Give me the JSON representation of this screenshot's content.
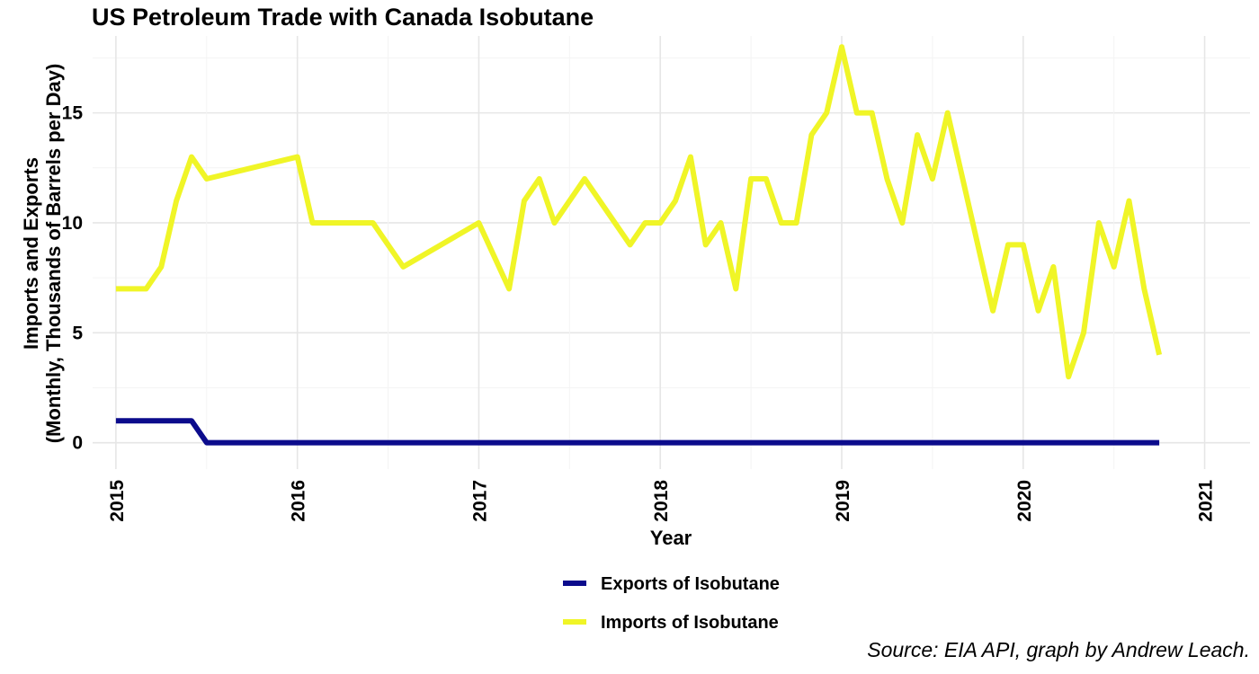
{
  "chart_data": {
    "type": "line",
    "title": "US Petroleum Trade with Canada Isobutane",
    "xlabel": "Year",
    "ylabel_lines": [
      "Imports and Exports",
      "(Monthly, Thousands of Barrels per Day)"
    ],
    "caption": "Source: EIA API, graph by Andrew Leach.",
    "x_ticks": [
      "2015",
      "2016",
      "2017",
      "2018",
      "2019",
      "2020",
      "2021"
    ],
    "y_ticks": [
      "0",
      "5",
      "10",
      "15"
    ],
    "xlim": [
      "2014-11-15",
      "2021-04-01"
    ],
    "ylim": [
      -1.2,
      18.5
    ],
    "grid": true,
    "legend_position": "bottom",
    "series": [
      {
        "name": "Exports of Isobutane",
        "color": "#0b0b8c",
        "points": [
          [
            "2015-01",
            1
          ],
          [
            "2015-02",
            1
          ],
          [
            "2015-03",
            1
          ],
          [
            "2015-04",
            1
          ],
          [
            "2015-05",
            1
          ],
          [
            "2015-06",
            1
          ],
          [
            "2015-07",
            0
          ],
          [
            "2016-01",
            0
          ],
          [
            "2017-01",
            0
          ],
          [
            "2018-01",
            0
          ],
          [
            "2019-01",
            0
          ],
          [
            "2020-01",
            0
          ],
          [
            "2020-10",
            0
          ]
        ]
      },
      {
        "name": "Imports of Isobutane",
        "color": "#f0f527",
        "points": [
          [
            "2015-01",
            7
          ],
          [
            "2015-02",
            7
          ],
          [
            "2015-03",
            7
          ],
          [
            "2015-04",
            8
          ],
          [
            "2015-05",
            11
          ],
          [
            "2015-06",
            13
          ],
          [
            "2015-07",
            12
          ],
          [
            "2016-01",
            13
          ],
          [
            "2016-02",
            10
          ],
          [
            "2016-06",
            10
          ],
          [
            "2016-08",
            8
          ],
          [
            "2017-01",
            10
          ],
          [
            "2017-03",
            7
          ],
          [
            "2017-04",
            11
          ],
          [
            "2017-05",
            12
          ],
          [
            "2017-06",
            10
          ],
          [
            "2017-08",
            12
          ],
          [
            "2017-11",
            9
          ],
          [
            "2017-12",
            10
          ],
          [
            "2018-01",
            10
          ],
          [
            "2018-02",
            11
          ],
          [
            "2018-03",
            13
          ],
          [
            "2018-04",
            9
          ],
          [
            "2018-05",
            10
          ],
          [
            "2018-06",
            7
          ],
          [
            "2018-07",
            12
          ],
          [
            "2018-08",
            12
          ],
          [
            "2018-09",
            10
          ],
          [
            "2018-10",
            10
          ],
          [
            "2018-11",
            14
          ],
          [
            "2018-12",
            15
          ],
          [
            "2019-01",
            18
          ],
          [
            "2019-02",
            15
          ],
          [
            "2019-03",
            15
          ],
          [
            "2019-04",
            12
          ],
          [
            "2019-05",
            10
          ],
          [
            "2019-06",
            14
          ],
          [
            "2019-07",
            12
          ],
          [
            "2019-08",
            15
          ],
          [
            "2019-11",
            6
          ],
          [
            "2019-12",
            9
          ],
          [
            "2020-01",
            9
          ],
          [
            "2020-02",
            6
          ],
          [
            "2020-03",
            8
          ],
          [
            "2020-04",
            3
          ],
          [
            "2020-05",
            5
          ],
          [
            "2020-06",
            10
          ],
          [
            "2020-07",
            8
          ],
          [
            "2020-08",
            11
          ],
          [
            "2020-09",
            7
          ],
          [
            "2020-10",
            4
          ]
        ]
      }
    ]
  }
}
